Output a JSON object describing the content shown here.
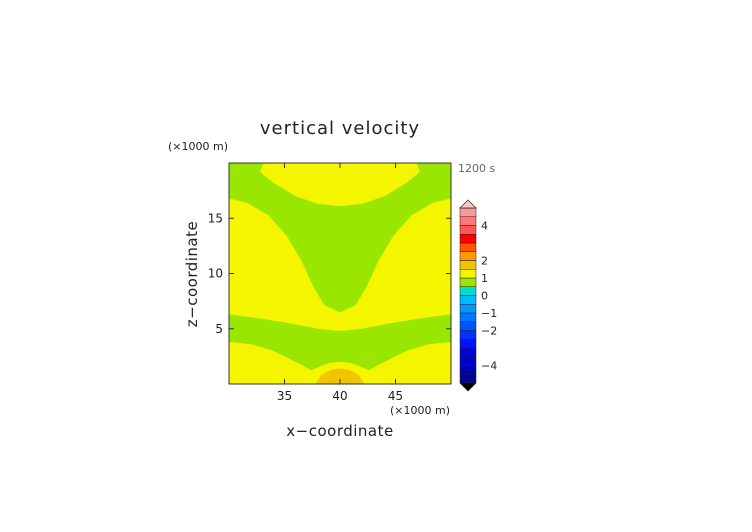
{
  "chart_data": {
    "type": "heatmap",
    "kind": "contour",
    "title": "vertical velocity",
    "xlabel": "x−coordinate",
    "ylabel": "z−coordinate",
    "x_unit": "(×1000 m)",
    "y_unit": "(×1000 m)",
    "time_label": "1200 s",
    "xlim": [
      30,
      50
    ],
    "ylim": [
      0,
      20
    ],
    "x_ticks": [
      35,
      40,
      45
    ],
    "y_ticks": [
      5,
      10,
      15
    ],
    "field_colors": {
      "neg0": "#99e600",
      "pos0": "#f5f500",
      "pos1": "#f2c400"
    },
    "regions": [
      {
        "level": "neg0",
        "polygon": [
          [
            30,
            0
          ],
          [
            50,
            0
          ],
          [
            50,
            20
          ],
          [
            30,
            20
          ]
        ]
      },
      {
        "level": "pos0",
        "polygon": [
          [
            33.1,
            20
          ],
          [
            32.8,
            19.2
          ],
          [
            34,
            18.2
          ],
          [
            36,
            17.0
          ],
          [
            38,
            16.3
          ],
          [
            40,
            16.1
          ],
          [
            42,
            16.3
          ],
          [
            44,
            17.0
          ],
          [
            46,
            18.2
          ],
          [
            47.2,
            19.2
          ],
          [
            46.9,
            20
          ]
        ]
      },
      {
        "level": "pos0",
        "polygon": [
          [
            30,
            16.8
          ],
          [
            31.6,
            16.4
          ],
          [
            33.5,
            15.3
          ],
          [
            35.2,
            13.4
          ],
          [
            36.6,
            11.0
          ],
          [
            37.6,
            8.8
          ],
          [
            38.6,
            7.1
          ],
          [
            40,
            6.5
          ],
          [
            41.4,
            7.1
          ],
          [
            42.4,
            8.8
          ],
          [
            43.4,
            11.0
          ],
          [
            44.8,
            13.4
          ],
          [
            46.5,
            15.3
          ],
          [
            48.4,
            16.4
          ],
          [
            50,
            16.8
          ],
          [
            50,
            6.3
          ],
          [
            47,
            5.9
          ],
          [
            44,
            5.4
          ],
          [
            42,
            5.0
          ],
          [
            40,
            4.8
          ],
          [
            38,
            5.0
          ],
          [
            36,
            5.4
          ],
          [
            33,
            5.9
          ],
          [
            30,
            6.3
          ]
        ]
      },
      {
        "level": "pos0",
        "polygon": [
          [
            30,
            3.8
          ],
          [
            32,
            3.6
          ],
          [
            34,
            3.0
          ],
          [
            36,
            2.0
          ],
          [
            37.5,
            1.2
          ],
          [
            37,
            0.3
          ],
          [
            36,
            0
          ],
          [
            30,
            0
          ]
        ]
      },
      {
        "level": "pos0",
        "polygon": [
          [
            50,
            3.8
          ],
          [
            48,
            3.6
          ],
          [
            46,
            3.0
          ],
          [
            44,
            2.0
          ],
          [
            42.5,
            1.2
          ],
          [
            43,
            0.3
          ],
          [
            44,
            0
          ],
          [
            50,
            0
          ]
        ]
      },
      {
        "level": "pos0",
        "polygon": [
          [
            34.5,
            0
          ],
          [
            35.8,
            0.6
          ],
          [
            37.5,
            1.3
          ],
          [
            39,
            1.9
          ],
          [
            40,
            2.0
          ],
          [
            41,
            1.9
          ],
          [
            42.5,
            1.3
          ],
          [
            44.2,
            0.6
          ],
          [
            45.5,
            0
          ]
        ]
      },
      {
        "level": "pos1",
        "polygon": [
          [
            37.8,
            0
          ],
          [
            38.3,
            0.8
          ],
          [
            39.2,
            1.3
          ],
          [
            40,
            1.4
          ],
          [
            40.8,
            1.3
          ],
          [
            41.7,
            0.8
          ],
          [
            42.2,
            0
          ]
        ]
      }
    ],
    "colorbar": {
      "levels": [
        -5.0,
        -4.5,
        -4.0,
        -3.5,
        -3.0,
        -2.5,
        -2.0,
        -1.5,
        -1.0,
        -0.5,
        0.0,
        0.5,
        1.0,
        1.5,
        2.0,
        2.5,
        3.0,
        3.5,
        4.0,
        4.5,
        5.0
      ],
      "colors": [
        "#000099",
        "#0000b3",
        "#0000cc",
        "#0000e6",
        "#0011ff",
        "#0033ff",
        "#0055ff",
        "#0077ff",
        "#0099ff",
        "#00bbff",
        "#00ddcc",
        "#99e600",
        "#f5f500",
        "#f2c400",
        "#ff9900",
        "#ff5500",
        "#ff0000",
        "#ff5555",
        "#ff7777",
        "#ff9999",
        "#ffbbbb"
      ],
      "tick_labels": [
        "−4",
        "−2",
        "−1",
        "0",
        "1",
        "2",
        "4"
      ],
      "tick_values": [
        -4,
        -2,
        -1,
        0,
        1,
        2,
        4
      ],
      "over_color": "#f6c6c6",
      "under_color": "#000000"
    }
  }
}
